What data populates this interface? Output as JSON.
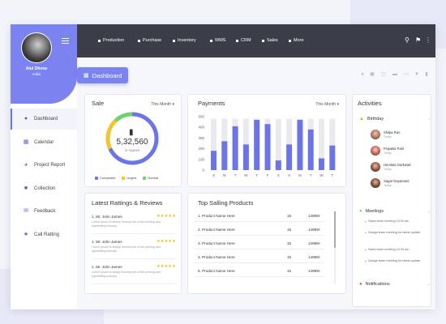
{
  "user": {
    "name": "Atul Dhone",
    "location": "India"
  },
  "sidebar": {
    "items": [
      {
        "label": "Dashboard",
        "icon": "palette-icon",
        "active": true
      },
      {
        "label": "Calendar",
        "icon": "calendar-icon"
      },
      {
        "label": "Project Report",
        "icon": "pie-chart-icon"
      },
      {
        "label": "Collection",
        "icon": "folder-icon"
      },
      {
        "label": "Feedback",
        "icon": "chat-icon"
      },
      {
        "label": "Call Ratting",
        "icon": "star-icon"
      }
    ]
  },
  "topnav": {
    "items": [
      "Production",
      "Purchase",
      "Inventory",
      "WMS",
      "CRM",
      "Sales",
      "More"
    ]
  },
  "page": {
    "title": "Dashboard"
  },
  "sale": {
    "title": "Sale",
    "period": "This Month",
    "value": "5,32,560",
    "unit": "in rupees",
    "legend": [
      "Completed",
      "Urgent",
      "Normal"
    ],
    "colors": {
      "completed": "#6c74ea",
      "urgent": "#f4c430",
      "normal": "#6fd36a"
    },
    "segments": {
      "completed": 0.68,
      "urgent": 0.2,
      "normal": 0.12
    }
  },
  "payments": {
    "title": "Payments",
    "period": "This Month",
    "chart_data": {
      "type": "bar",
      "categories": [
        "S",
        "M",
        "T",
        "W",
        "T",
        "F",
        "S",
        "S",
        "M",
        "T",
        "W",
        "T"
      ],
      "values": [
        180,
        270,
        410,
        240,
        470,
        430,
        90,
        240,
        470,
        380,
        110,
        230
      ],
      "background_max": [
        480,
        480,
        480,
        480,
        480,
        480,
        480,
        480,
        480,
        480,
        480,
        480
      ],
      "yticks": [
        "500",
        "400",
        "300",
        "200",
        "100",
        "0"
      ],
      "ylim": [
        0,
        500
      ]
    }
  },
  "activities": {
    "title": "Activities",
    "birthday": {
      "label": "Birthday",
      "people": [
        {
          "name": "Shilpa Rao",
          "day": "Today"
        },
        {
          "name": "Prajakta Patil",
          "day": "Today"
        },
        {
          "name": "Hemlata Garkwad",
          "day": "Today"
        },
        {
          "name": "Sagar Dayanand",
          "day": "Today"
        }
      ]
    },
    "meetings": {
      "label": "Meetings",
      "items": [
        "Sales team meeting 10:00 am",
        "Design team meeting for latest update",
        "Sales team meeting 10:00 am",
        "Design team meeting for latest update"
      ]
    },
    "notifications": {
      "label": "Notifications"
    }
  },
  "reviews": {
    "title": "Latest Rattings & Reviews",
    "items": [
      {
        "name": "1. Mr. John James",
        "text": "Lorem Ipsum is simply dummy text of the printing and typesetting industry.",
        "rating": 5
      },
      {
        "name": "1. Mr. John James",
        "text": "Lorem Ipsum is simply dummy text of the printing and typesetting industry.",
        "rating": 5
      },
      {
        "name": "1. Mr. John James",
        "text": "Lorem Ipsum is simply dummy text of the printing and typesetting industry.",
        "rating": 5
      }
    ]
  },
  "products": {
    "title": "Top Salling Products",
    "rows": [
      {
        "name": "1. Product Name Here",
        "qty": "15",
        "price": "14999/-"
      },
      {
        "name": "2. Product Name Here",
        "qty": "15",
        "price": "14999/-"
      },
      {
        "name": "3. Product Name Here",
        "qty": "15",
        "price": "14999/-"
      },
      {
        "name": "4. Product Name Here",
        "qty": "15",
        "price": "14999/-"
      },
      {
        "name": "5. Product Name Here",
        "qty": "15",
        "price": "14999/-"
      }
    ]
  }
}
